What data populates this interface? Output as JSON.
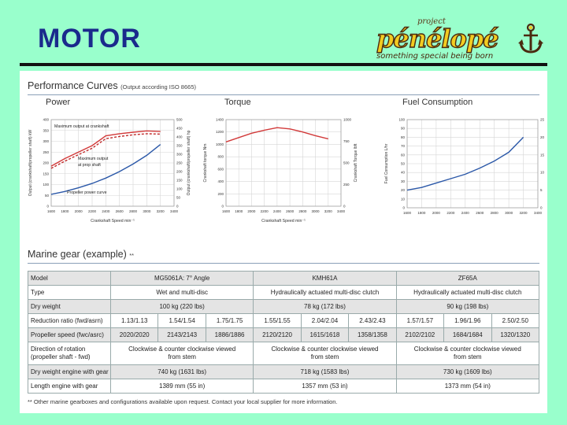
{
  "slide": {
    "title": "MOTOR"
  },
  "logo": {
    "project": "project",
    "word": "pénélopé",
    "tagline": "something special being born"
  },
  "perf": {
    "title": "Performance Curves",
    "note": "(Output according ISO 8665)",
    "power": {
      "label": "Power",
      "y_left_label": "Output (crankshaft/propeller shaft) kW",
      "y_right_label": "Output (crankshaft/propeller shaft) hp",
      "x_label": "Crankshaft Speed min⁻¹",
      "ann_max_crank": "Maximum output at crankshaft",
      "ann_max_prop_1": "Maximum output",
      "ann_max_prop_2": "at prop shaft",
      "ann_prop_curve": "Propeller power curve"
    },
    "torque": {
      "label": "Torque",
      "y_left_label": "Crankshaft torque Nm",
      "y_right_label": "Crankshaft Torque lbft",
      "x_label": "Crankshaft Speed min⁻¹"
    },
    "fuel": {
      "label": "Fuel Consumption",
      "y_left_label": "Fuel Consumption L/hr",
      "y_right_label": "Fuel Consumption gal/hr"
    }
  },
  "chart_data": [
    {
      "type": "line",
      "title": "Power",
      "xlabel": "Crankshaft Speed min⁻¹",
      "ylabel": "Output (crankshaft/propeller shaft) kW",
      "xlim": [
        1600,
        3400
      ],
      "ylim": [
        0,
        400
      ],
      "y2lim": [
        0,
        500
      ],
      "x_ticks": [
        1600,
        1800,
        2000,
        2200,
        2400,
        2600,
        2800,
        3000,
        3200,
        3400
      ],
      "y_ticks": [
        0,
        50,
        100,
        150,
        200,
        250,
        300,
        350,
        400
      ],
      "y2_ticks": [
        0,
        50,
        100,
        150,
        200,
        250,
        300,
        350,
        400,
        450,
        500
      ],
      "series": [
        {
          "style": "solid",
          "color": "#d23a3a",
          "x": [
            1600,
            1800,
            2000,
            2200,
            2400,
            2600,
            2800,
            3000,
            3200
          ],
          "y": [
            185,
            220,
            250,
            280,
            325,
            335,
            342,
            348,
            345
          ]
        },
        {
          "style": "dashed",
          "color": "#c02a2a",
          "x": [
            1600,
            1800,
            2000,
            2200,
            2400,
            2600,
            2800,
            3000,
            3200
          ],
          "y": [
            175,
            208,
            238,
            268,
            312,
            322,
            330,
            335,
            333
          ]
        },
        {
          "style": "solid",
          "color": "#2b58a8",
          "x": [
            1600,
            1800,
            2000,
            2200,
            2400,
            2600,
            2800,
            3000,
            3200
          ],
          "y": [
            55,
            68,
            85,
            105,
            130,
            160,
            195,
            235,
            285
          ]
        }
      ]
    },
    {
      "type": "line",
      "title": "Torque",
      "xlabel": "Crankshaft Speed min⁻¹",
      "ylabel": "Crankshaft torque Nm",
      "xlim": [
        1600,
        3400
      ],
      "ylim": [
        0,
        1400
      ],
      "y2lim": [
        0,
        1000
      ],
      "x_ticks": [
        1600,
        1800,
        2000,
        2200,
        2400,
        2600,
        2800,
        3000,
        3200,
        3400
      ],
      "y_ticks": [
        0,
        200,
        400,
        600,
        800,
        1000,
        1200,
        1400
      ],
      "y2_ticks": [
        0,
        250,
        500,
        750,
        1000
      ],
      "series": [
        {
          "style": "solid",
          "color": "#d23a3a",
          "x": [
            1600,
            1800,
            2000,
            2200,
            2400,
            2600,
            2800,
            3000,
            3200
          ],
          "y": [
            1040,
            1110,
            1180,
            1230,
            1270,
            1250,
            1200,
            1140,
            1090
          ]
        }
      ]
    },
    {
      "type": "line",
      "title": "Fuel Consumption",
      "xlabel": "",
      "ylabel": "Fuel Consumption L/hr",
      "xlim": [
        1600,
        3400
      ],
      "ylim": [
        0,
        100
      ],
      "y2lim": [
        0,
        25
      ],
      "x_ticks": [
        1600,
        1800,
        2000,
        2200,
        2400,
        2600,
        2800,
        3000,
        3200,
        3400
      ],
      "y_ticks": [
        0,
        10,
        20,
        30,
        40,
        50,
        60,
        70,
        80,
        90,
        100
      ],
      "y2_ticks": [
        0,
        5,
        10,
        15,
        20,
        25
      ],
      "series": [
        {
          "style": "solid",
          "color": "#2b58a8",
          "x": [
            1600,
            1800,
            2000,
            2200,
            2400,
            2600,
            2800,
            3000,
            3200
          ],
          "y": [
            20,
            23,
            28,
            33,
            38,
            45,
            53,
            63,
            80
          ]
        }
      ]
    }
  ],
  "gear": {
    "title": "Marine gear (example)",
    "title_mark": "**",
    "rows": {
      "model": {
        "label": "Model",
        "a": "MG5061A: 7° Angle",
        "b": "KMH61A",
        "c": "ZF65A"
      },
      "type": {
        "label": "Type",
        "a": "Wet and multi-disc",
        "b": "Hydraulically actuated multi-disc clutch",
        "c": "Hydraulically actuated multi-disc clutch"
      },
      "dry": {
        "label": "Dry weight",
        "a": "100 kg (220 lbs)",
        "b": "78 kg (172 lbs)",
        "c": "90 kg (198 lbs)"
      },
      "ratio": {
        "label": "Reduction ratio (fwd/asrn)",
        "v": [
          "1.13/1.13",
          "1.54/1.54",
          "1.75/1.75",
          "1.55/1.55",
          "2.04/2.04",
          "2.43/2.43",
          "1.57/1.57",
          "1.96/1.96",
          "2.50/2.50"
        ]
      },
      "speed": {
        "label": "Propeller speed (fwc/asrc)",
        "v": [
          "2020/2020",
          "2143/2143",
          "1886/1886",
          "2120/2120",
          "1615/1618",
          "1358/1358",
          "2102/2102",
          "1684/1684",
          "1320/1320"
        ]
      },
      "rot": {
        "label1": "Direction of rotation",
        "label2": "(propeller shaft - fwd)",
        "a1": "Clockwise & counter clockwise viewed",
        "a2": "from stem",
        "b1": "Clockwise & counter clockwise viewed",
        "b2": "from stem",
        "c1": "Clockwise & counter clockwise viewed",
        "c2": "from stem"
      },
      "dryeng": {
        "label": "Dry weight engine with gear",
        "a": "740 kg (1631 lbs)",
        "b": "718 kg (1583 lbs)",
        "c": "730 kg (1609 lbs)"
      },
      "length": {
        "label": "Length engine with gear",
        "a": "1389 mm (55 in)",
        "b": "1357 mm (53 in)",
        "c": "1373 mm (54 in)"
      }
    },
    "footnote": "** Other marine gearboxes and configurations available upon request. Contact your local supplier for more information."
  }
}
